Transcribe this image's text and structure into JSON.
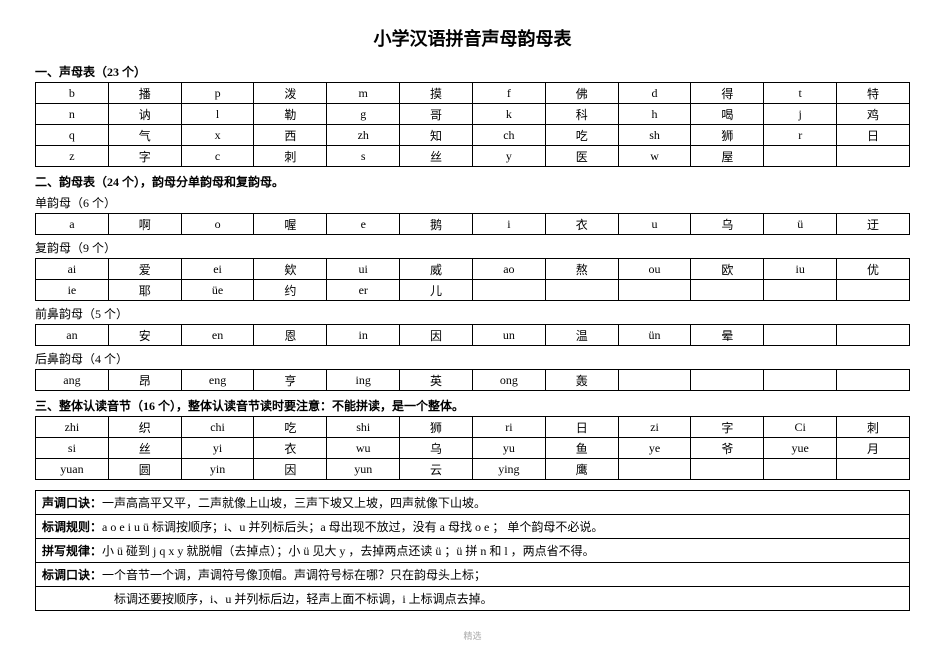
{
  "title": "小学汉语拼音声母韵母表",
  "sections": {
    "s1": {
      "heading": "一、声母表（23 个）",
      "rows": [
        [
          "b",
          "播",
          "p",
          "泼",
          "m",
          "摸",
          "f",
          "佛",
          "d",
          "得",
          "t",
          "特"
        ],
        [
          "n",
          "讷",
          "l",
          "勒",
          "g",
          "哥",
          "k",
          "科",
          "h",
          "喝",
          "j",
          "鸡"
        ],
        [
          "q",
          "气",
          "x",
          "西",
          "zh",
          "知",
          "ch",
          "吃",
          "sh",
          "狮",
          "r",
          "日"
        ],
        [
          "z",
          "字",
          "c",
          "刺",
          "s",
          "丝",
          "y",
          "医",
          "w",
          "屋",
          "",
          ""
        ]
      ]
    },
    "s2": {
      "heading": "二、韵母表（24 个），韵母分单韵母和复韵母。",
      "single_heading": "单韵母（6 个）",
      "single_rows": [
        [
          "a",
          "啊",
          "o",
          "喔",
          "e",
          "鹅",
          "i",
          "衣",
          "u",
          "乌",
          "ü",
          "迂"
        ]
      ],
      "compound_heading": "复韵母（9 个）",
      "compound_rows": [
        [
          "ai",
          "爱",
          "ei",
          "欸",
          "ui",
          "威",
          "ao",
          "熬",
          "ou",
          "欧",
          "iu",
          "优"
        ],
        [
          "ie",
          "耶",
          "üe",
          "约",
          "er",
          "儿",
          "",
          "",
          "",
          "",
          "",
          ""
        ]
      ],
      "front_heading": "前鼻韵母（5 个）",
      "front_rows": [
        [
          "an",
          "安",
          "en",
          "恩",
          "in",
          "因",
          "un",
          "温",
          "ün",
          "晕",
          "",
          ""
        ]
      ],
      "back_heading": "后鼻韵母（4 个）",
      "back_rows": [
        [
          "ang",
          "昂",
          "eng",
          "亨",
          "ing",
          "英",
          "ong",
          "轰",
          "",
          "",
          "",
          ""
        ]
      ]
    },
    "s3": {
      "heading": "三、整体认读音节（16 个），整体认读音节读时要注意：不能拼读，是一个整体。",
      "rows": [
        [
          "zhi",
          "织",
          "chi",
          "吃",
          "shi",
          "狮",
          "ri",
          "日",
          "zi",
          "字",
          "Ci",
          "刺"
        ],
        [
          "si",
          "丝",
          "yi",
          "衣",
          "wu",
          "乌",
          "yu",
          "鱼",
          "ye",
          "爷",
          "yue",
          "月"
        ],
        [
          "yuan",
          "圆",
          "yin",
          "因",
          "yun",
          "云",
          "ying",
          "鹰",
          "",
          "",
          "",
          ""
        ]
      ]
    }
  },
  "rules": [
    {
      "label": "声调口诀：",
      "text": "一声高高平又平，二声就像上山坡，三声下坡又上坡，四声就像下山坡。"
    },
    {
      "label": "标调规则：",
      "text": "a o e i u ü  标调按顺序；i、u 并列标后头；a 母出现不放过，没有 a 母找  o   e ； 单个韵母不必说。"
    },
    {
      "label": "拼写规律：",
      "text": "小 ü 碰到 j q x y 就脱帽（去掉点）；小 ü 见大 y ，去掉两点还读 ü ；ü 拼 n 和 l ，两点省不得。"
    },
    {
      "label": "标调口诀：",
      "text": "一个音节一个调，声调符号像顶帽。声调符号标在哪？只在韵母头上标；"
    },
    {
      "label": "",
      "text": "标调还要按顺序，i、u 并列标后边，轻声上面不标调，i 上标调点去掉。"
    }
  ],
  "footer": "精选"
}
